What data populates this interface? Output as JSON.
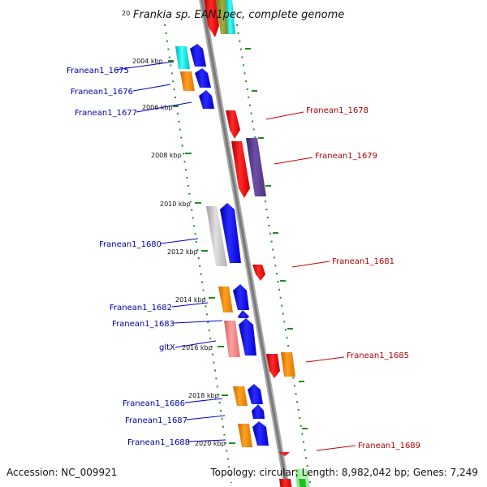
{
  "title": {
    "prefix": "20",
    "text": "Frankia sp. EAN1pec, complete genome"
  },
  "footer": {
    "accession": "Accession: NC_009921",
    "stats": "Topology: circular; Length: 8,982,042 bp; Genes: 7,249"
  },
  "kbp_labels": [
    "2004 kbp",
    "2006 kbp",
    "2008 kbp",
    "2010 kbp",
    "2012 kbp",
    "2014 kbp",
    "2016 kbp",
    "2018 kbp",
    "2020 kbp"
  ],
  "genes_left": [
    "Franean1_1675",
    "Franean1_1676",
    "Franean1_1677",
    "Franean1_1680",
    "Franean1_1682",
    "Franean1_1683",
    "gltX",
    "Franean1_1686",
    "Franean1_1687",
    "Franean1_1688"
  ],
  "genes_right": [
    "Franean1_1678",
    "Franean1_1679",
    "Franean1_1681",
    "Franean1_1685",
    "Franean1_1689"
  ],
  "colors": {
    "left_label": "#0000aa",
    "right_label": "#b00000",
    "backbone": "#888888",
    "tick_dots": "#228b22",
    "gene_blue": "#0000ee",
    "gene_red": "#ee0000",
    "gene_orange": "#ff8800",
    "gene_cyan": "#00e0e0",
    "gene_grey": "#c0c0c0",
    "gene_pink": "#f08080",
    "gene_purple": "#5a3a8a"
  }
}
